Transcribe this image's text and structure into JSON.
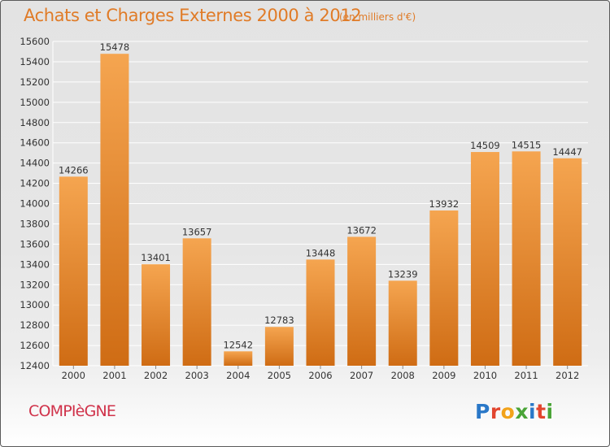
{
  "header": {
    "title": "Achats et Charges Externes 2000 à 2012",
    "unit": "(en milliers d'€)"
  },
  "footer": {
    "city": "COMPIèGNE",
    "logo_text": "Proxiti",
    "logo_letters": [
      {
        "ch": "P",
        "color": "#2a78c8"
      },
      {
        "ch": "r",
        "color": "#e2462f"
      },
      {
        "ch": "o",
        "color": "#f2a31b"
      },
      {
        "ch": "x",
        "color": "#4aa437"
      },
      {
        "ch": "i",
        "color": "#2a78c8"
      },
      {
        "ch": "t",
        "color": "#e2462f"
      },
      {
        "ch": "i",
        "color": "#4aa437"
      }
    ]
  },
  "colors": {
    "bar_light": "#f5a550",
    "bar_dark": "#cf6c14",
    "grid": "#ffffff",
    "axis_text": "#333333",
    "title": "#e07b27",
    "city": "#d0324a"
  },
  "chart_data": {
    "type": "bar",
    "title": "Achats et Charges Externes 2000 à 2012",
    "subtitle": "(en milliers d'€)",
    "xlabel": "",
    "ylabel": "",
    "categories": [
      "2000",
      "2001",
      "2002",
      "2003",
      "2004",
      "2005",
      "2006",
      "2007",
      "2008",
      "2009",
      "2010",
      "2011",
      "2012"
    ],
    "values": [
      14266,
      15478,
      13401,
      13657,
      12542,
      12783,
      13448,
      13672,
      13239,
      13932,
      14509,
      14515,
      14447
    ],
    "ylim": [
      12400,
      15600
    ],
    "yticks": [
      12400,
      12600,
      12800,
      13000,
      13200,
      13400,
      13600,
      13800,
      14000,
      14200,
      14400,
      14600,
      14800,
      15000,
      15200,
      15400,
      15600
    ],
    "grid": true,
    "data_labels": true
  }
}
